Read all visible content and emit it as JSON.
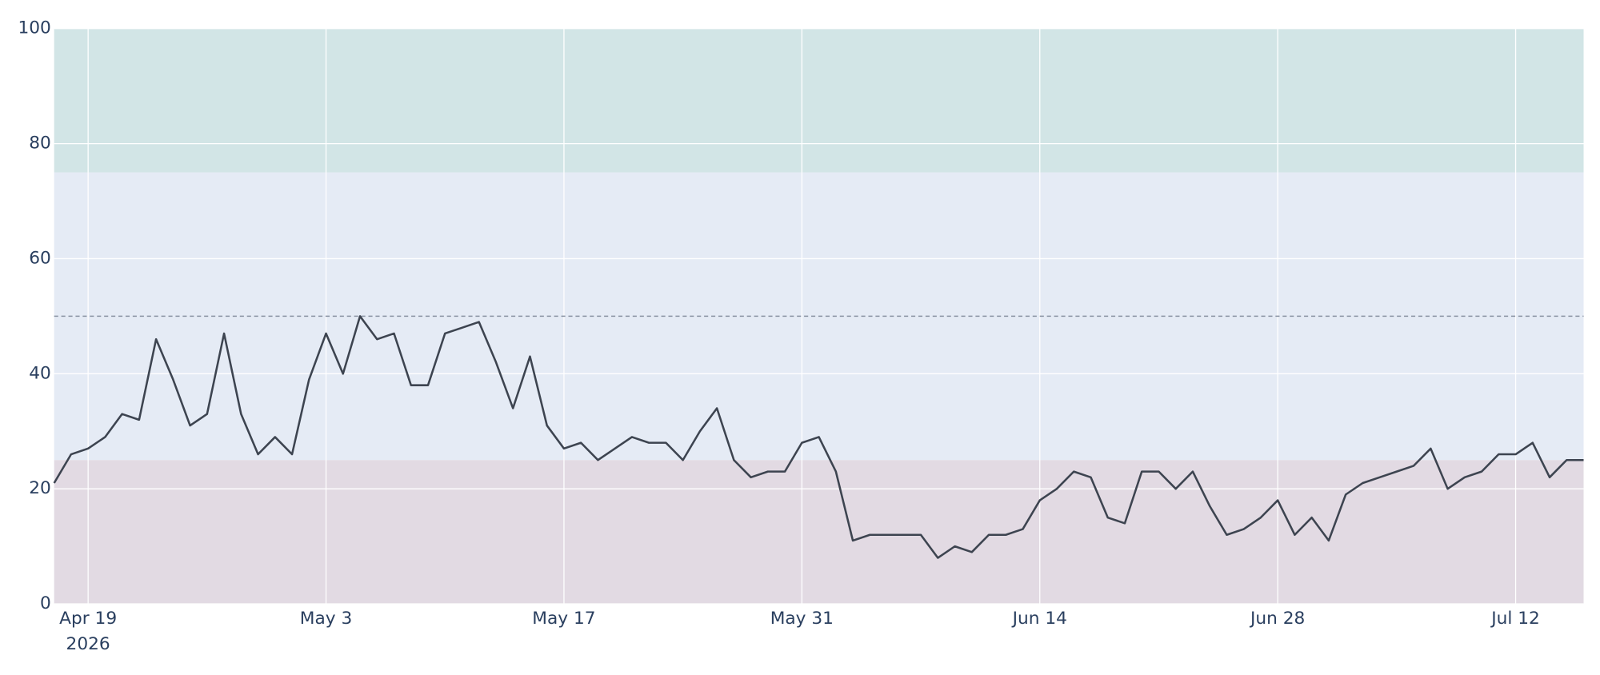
{
  "chart_data": {
    "type": "line",
    "x": [
      "2026-04-17",
      "2026-04-18",
      "2026-04-19",
      "2026-04-20",
      "2026-04-21",
      "2026-04-22",
      "2026-04-23",
      "2026-04-24",
      "2026-04-25",
      "2026-04-26",
      "2026-04-27",
      "2026-04-28",
      "2026-04-29",
      "2026-04-30",
      "2026-05-01",
      "2026-05-02",
      "2026-05-03",
      "2026-05-04",
      "2026-05-05",
      "2026-05-06",
      "2026-05-07",
      "2026-05-08",
      "2026-05-09",
      "2026-05-10",
      "2026-05-11",
      "2026-05-12",
      "2026-05-13",
      "2026-05-14",
      "2026-05-15",
      "2026-05-16",
      "2026-05-17",
      "2026-05-18",
      "2026-05-19",
      "2026-05-20",
      "2026-05-21",
      "2026-05-22",
      "2026-05-23",
      "2026-05-24",
      "2026-05-25",
      "2026-05-26",
      "2026-05-27",
      "2026-05-28",
      "2026-05-29",
      "2026-05-30",
      "2026-05-31",
      "2026-06-01",
      "2026-06-02",
      "2026-06-03",
      "2026-06-04",
      "2026-06-05",
      "2026-06-06",
      "2026-06-07",
      "2026-06-08",
      "2026-06-09",
      "2026-06-10",
      "2026-06-11",
      "2026-06-12",
      "2026-06-13",
      "2026-06-14",
      "2026-06-15",
      "2026-06-16",
      "2026-06-17",
      "2026-06-18",
      "2026-06-19",
      "2026-06-20",
      "2026-06-21",
      "2026-06-22",
      "2026-06-23",
      "2026-06-24",
      "2026-06-25",
      "2026-06-26",
      "2026-06-27",
      "2026-06-28",
      "2026-06-29",
      "2026-06-30",
      "2026-07-01",
      "2026-07-02",
      "2026-07-03",
      "2026-07-04",
      "2026-07-05",
      "2026-07-06",
      "2026-07-07",
      "2026-07-08",
      "2026-07-09",
      "2026-07-10",
      "2026-07-11",
      "2026-07-12",
      "2026-07-13",
      "2026-07-14",
      "2026-07-15",
      "2026-07-16"
    ],
    "values": [
      21,
      26,
      27,
      29,
      33,
      32,
      46,
      39,
      31,
      33,
      47,
      33,
      26,
      29,
      26,
      39,
      47,
      40,
      50,
      46,
      47,
      38,
      38,
      47,
      48,
      49,
      42,
      34,
      43,
      31,
      27,
      28,
      25,
      27,
      29,
      28,
      28,
      25,
      30,
      34,
      25,
      22,
      23,
      23,
      28,
      29,
      23,
      11,
      12,
      12,
      12,
      12,
      8,
      10,
      9,
      12,
      12,
      13,
      18,
      20,
      23,
      22,
      15,
      14,
      23,
      23,
      20,
      23,
      17,
      12,
      13,
      15,
      18,
      12,
      15,
      11,
      19,
      21,
      22,
      23,
      24,
      27,
      20,
      22,
      23,
      26,
      26,
      28,
      22,
      25,
      25
    ],
    "color": "#3d4450",
    "xlim": [
      "2026-04-17",
      "2026-07-16"
    ],
    "xticks": [
      {
        "value": "2026-04-19",
        "label": "Apr 19"
      },
      {
        "value": "2026-05-03",
        "label": "May 3"
      },
      {
        "value": "2026-05-17",
        "label": "May 17"
      },
      {
        "value": "2026-05-31",
        "label": "May 31"
      },
      {
        "value": "2026-06-14",
        "label": "Jun 14"
      },
      {
        "value": "2026-06-28",
        "label": "Jun 28"
      },
      {
        "value": "2026-07-12",
        "label": "Jul 12"
      }
    ],
    "x_year_label": "2026",
    "ylim": [
      0,
      100
    ],
    "yticks": [
      0,
      20,
      40,
      60,
      80,
      100
    ],
    "grid": true,
    "bands": [
      {
        "from": 0,
        "to": 25,
        "color": "#e2dae3"
      },
      {
        "from": 25,
        "to": 75,
        "color": "#e5ebf5"
      },
      {
        "from": 75,
        "to": 100,
        "color": "#d2e5e6"
      }
    ],
    "reference_line": 50
  }
}
